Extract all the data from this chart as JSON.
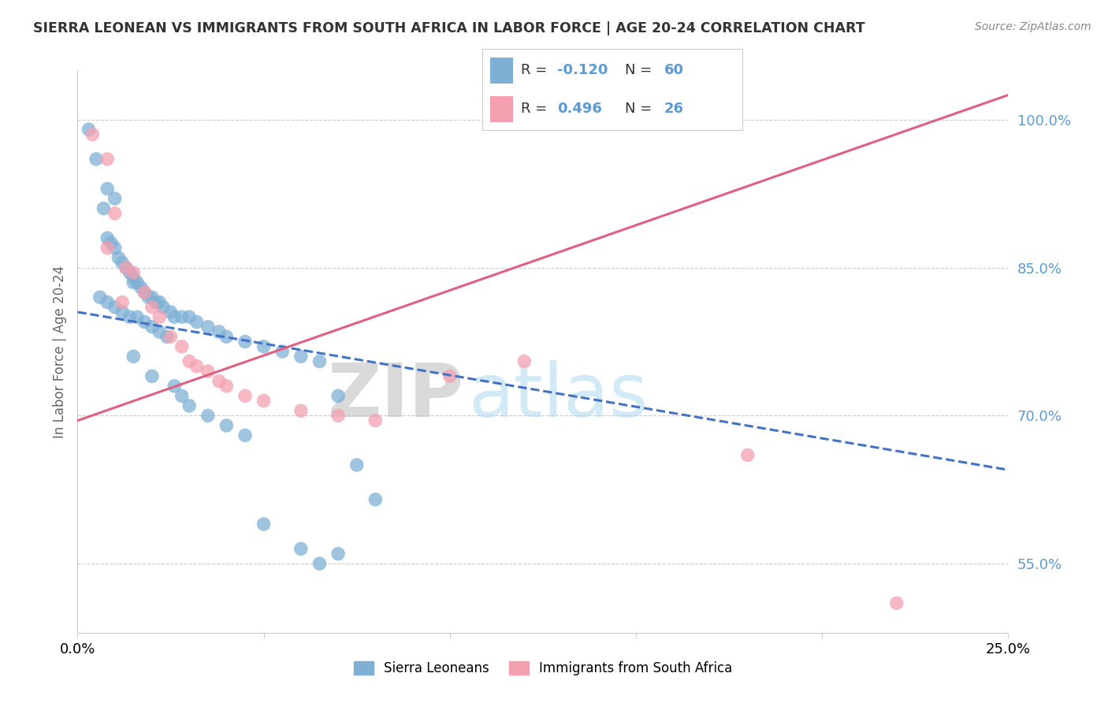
{
  "title": "SIERRA LEONEAN VS IMMIGRANTS FROM SOUTH AFRICA IN LABOR FORCE | AGE 20-24 CORRELATION CHART",
  "source_text": "Source: ZipAtlas.com",
  "ylabel": "In Labor Force | Age 20-24",
  "watermark_dark": "ZIP",
  "watermark_light": "atlas",
  "legend_label_1": "Sierra Leoneans",
  "legend_label_2": "Immigrants from South Africa",
  "R1_text": "-0.120",
  "N1_text": "60",
  "R2_text": "0.496",
  "N2_text": "26",
  "color_blue": "#7EB0D5",
  "color_pink": "#F4A0B0",
  "color_blue_line": "#4472C4",
  "color_pink_line": "#E06080",
  "xmin": 0.0,
  "xmax": 0.25,
  "ymin": 0.48,
  "ymax": 1.05,
  "yticks": [
    0.55,
    0.7,
    0.85,
    1.0
  ],
  "ytick_labels": [
    "55.0%",
    "70.0%",
    "85.0%",
    "100.0%"
  ],
  "blue_line_x": [
    0.0,
    0.25
  ],
  "blue_line_y": [
    0.805,
    0.645
  ],
  "pink_line_x": [
    0.0,
    0.25
  ],
  "pink_line_y": [
    0.695,
    1.025
  ],
  "blue_x": [
    0.003,
    0.005,
    0.007,
    0.008,
    0.009,
    0.01,
    0.011,
    0.012,
    0.013,
    0.014,
    0.015,
    0.015,
    0.016,
    0.017,
    0.018,
    0.019,
    0.02,
    0.021,
    0.022,
    0.023,
    0.025,
    0.026,
    0.028,
    0.03,
    0.032,
    0.035,
    0.038,
    0.04,
    0.045,
    0.05,
    0.055,
    0.06,
    0.065,
    0.07,
    0.075,
    0.08,
    0.006,
    0.008,
    0.01,
    0.012,
    0.014,
    0.016,
    0.018,
    0.02,
    0.022,
    0.024,
    0.026,
    0.028,
    0.03,
    0.035,
    0.04,
    0.045,
    0.05,
    0.06,
    0.065,
    0.07,
    0.008,
    0.01,
    0.015,
    0.02
  ],
  "blue_y": [
    0.99,
    0.96,
    0.91,
    0.88,
    0.875,
    0.87,
    0.86,
    0.855,
    0.85,
    0.845,
    0.84,
    0.835,
    0.835,
    0.83,
    0.825,
    0.82,
    0.82,
    0.815,
    0.815,
    0.81,
    0.805,
    0.8,
    0.8,
    0.8,
    0.795,
    0.79,
    0.785,
    0.78,
    0.775,
    0.77,
    0.765,
    0.76,
    0.755,
    0.72,
    0.65,
    0.615,
    0.82,
    0.815,
    0.81,
    0.805,
    0.8,
    0.8,
    0.795,
    0.79,
    0.785,
    0.78,
    0.73,
    0.72,
    0.71,
    0.7,
    0.69,
    0.68,
    0.59,
    0.565,
    0.55,
    0.56,
    0.93,
    0.92,
    0.76,
    0.74
  ],
  "pink_x": [
    0.004,
    0.008,
    0.01,
    0.013,
    0.015,
    0.018,
    0.02,
    0.022,
    0.025,
    0.028,
    0.03,
    0.032,
    0.035,
    0.038,
    0.04,
    0.045,
    0.05,
    0.06,
    0.07,
    0.08,
    0.1,
    0.12,
    0.18,
    0.22,
    0.008,
    0.012
  ],
  "pink_y": [
    0.985,
    0.96,
    0.905,
    0.85,
    0.845,
    0.825,
    0.81,
    0.8,
    0.78,
    0.77,
    0.755,
    0.75,
    0.745,
    0.735,
    0.73,
    0.72,
    0.715,
    0.705,
    0.7,
    0.695,
    0.74,
    0.755,
    0.66,
    0.51,
    0.87,
    0.815
  ]
}
